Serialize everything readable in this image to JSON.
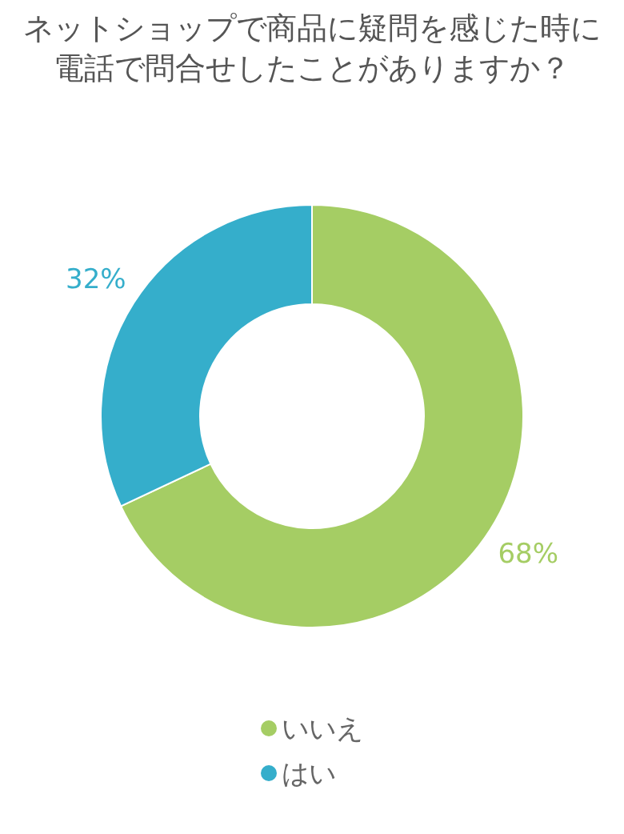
{
  "chart_data": {
    "type": "donut",
    "title": "ネットショップで商品に疑問を感じた時に電話で問合せしたことがありますか？",
    "categories": [
      "いいえ",
      "はい"
    ],
    "values": [
      68,
      32
    ],
    "colors": [
      "#a5cd64",
      "#35aecb"
    ],
    "value_labels": [
      "68%",
      "32%"
    ],
    "legend": "bottom"
  }
}
